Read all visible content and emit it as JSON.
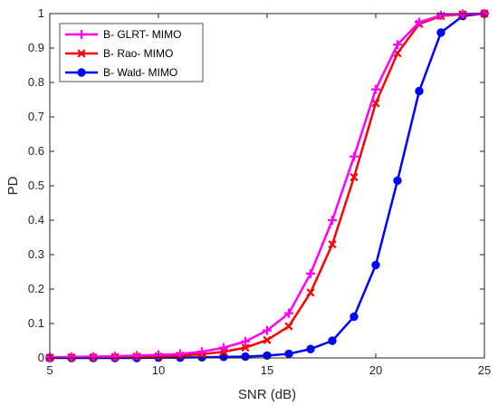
{
  "chart_data": {
    "type": "line",
    "xlabel": "SNR (dB)",
    "ylabel": "PD",
    "xlim": [
      5,
      25
    ],
    "ylim": [
      0,
      1
    ],
    "x_ticks": [
      5,
      10,
      15,
      20,
      25
    ],
    "y_ticks": [
      0,
      0.1,
      0.2,
      0.3,
      0.4,
      0.5,
      0.6,
      0.7,
      0.8,
      0.9,
      1
    ],
    "grid": false,
    "legend_position": "top-left",
    "x": [
      5,
      6,
      7,
      8,
      9,
      10,
      11,
      12,
      13,
      14,
      15,
      16,
      17,
      18,
      19,
      20,
      21,
      22,
      23,
      24,
      25
    ],
    "series": [
      {
        "name": "B- GLRT- MIMO",
        "color": "#ff00ff",
        "marker": "plus",
        "values": [
          0.002,
          0.003,
          0.004,
          0.005,
          0.007,
          0.009,
          0.012,
          0.018,
          0.03,
          0.048,
          0.08,
          0.13,
          0.245,
          0.4,
          0.585,
          0.78,
          0.91,
          0.975,
          0.995,
          0.999,
          1.0
        ]
      },
      {
        "name": "B- Rao- MIMO",
        "color": "#ff0000",
        "marker": "x",
        "values": [
          0.001,
          0.002,
          0.002,
          0.003,
          0.004,
          0.005,
          0.007,
          0.011,
          0.018,
          0.03,
          0.052,
          0.092,
          0.19,
          0.33,
          0.525,
          0.74,
          0.885,
          0.97,
          0.993,
          0.998,
          1.0
        ]
      },
      {
        "name": "B- Wald- MIMO",
        "color": "#0000ff",
        "marker": "circle",
        "values": [
          0.0,
          0.0,
          0.0,
          0.0,
          0.0,
          0.001,
          0.001,
          0.002,
          0.003,
          0.004,
          0.007,
          0.012,
          0.026,
          0.05,
          0.12,
          0.27,
          0.515,
          0.775,
          0.945,
          0.993,
          1.0
        ]
      }
    ]
  }
}
